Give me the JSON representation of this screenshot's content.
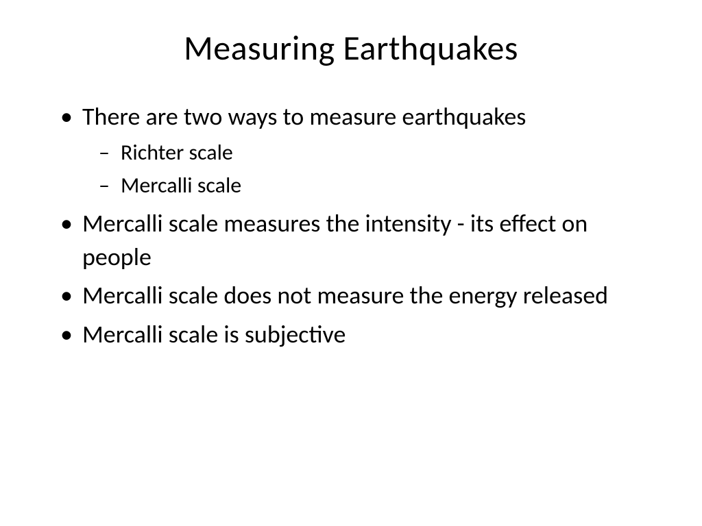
{
  "slide": {
    "title": "Measuring Earthquakes",
    "bullets": {
      "b1": "There are two ways to measure earthquakes",
      "b1_sub1": "Richter scale",
      "b1_sub2": "Mercalli scale",
      "b2": "Mercalli scale measures the intensity - its effect on people",
      "b3": "Mercalli scale does not measure the energy released",
      "b4": "Mercalli scale is subjective"
    }
  },
  "styling": {
    "background_color": "#ffffff",
    "text_color": "#000000",
    "font_family": "Calibri",
    "title_fontsize": 50,
    "title_weight": 400,
    "body_fontsize": 36,
    "sub_fontsize": 32,
    "bullet_level1_marker": "•",
    "bullet_level2_marker": "–",
    "slide_width": 1024,
    "slide_height": 768
  }
}
